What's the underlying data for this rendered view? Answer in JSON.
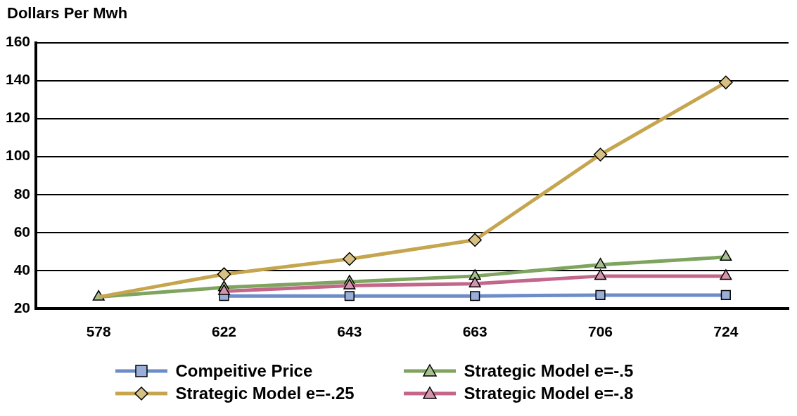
{
  "chart_data": {
    "type": "line",
    "ylabel": "Dollars Per Mwh",
    "categories": [
      "578",
      "622",
      "643",
      "663",
      "706",
      "724"
    ],
    "ylim": [
      20,
      160
    ],
    "yticks": [
      20,
      40,
      60,
      80,
      100,
      120,
      140,
      160
    ],
    "grid": "y",
    "legend": "bottom",
    "series": [
      {
        "name": "Compeitive Price",
        "color": "#6d8dc9",
        "marker": "square",
        "values": [
          null,
          26.5,
          26.5,
          26.5,
          27,
          27
        ]
      },
      {
        "name": "Strategic Model e=-.5",
        "color": "#7ea45f",
        "marker": "triangle",
        "values": [
          26,
          31,
          34,
          37,
          43,
          47
        ]
      },
      {
        "name": "Strategic Model e=-.25",
        "color": "#c6a54f",
        "marker": "diamond",
        "values": [
          26,
          38,
          46,
          56,
          101,
          139
        ]
      },
      {
        "name": "Strategic Model e=-.8",
        "color": "#c3668a",
        "marker": "triangle",
        "values": [
          null,
          29,
          32,
          33,
          37,
          37
        ]
      }
    ]
  }
}
